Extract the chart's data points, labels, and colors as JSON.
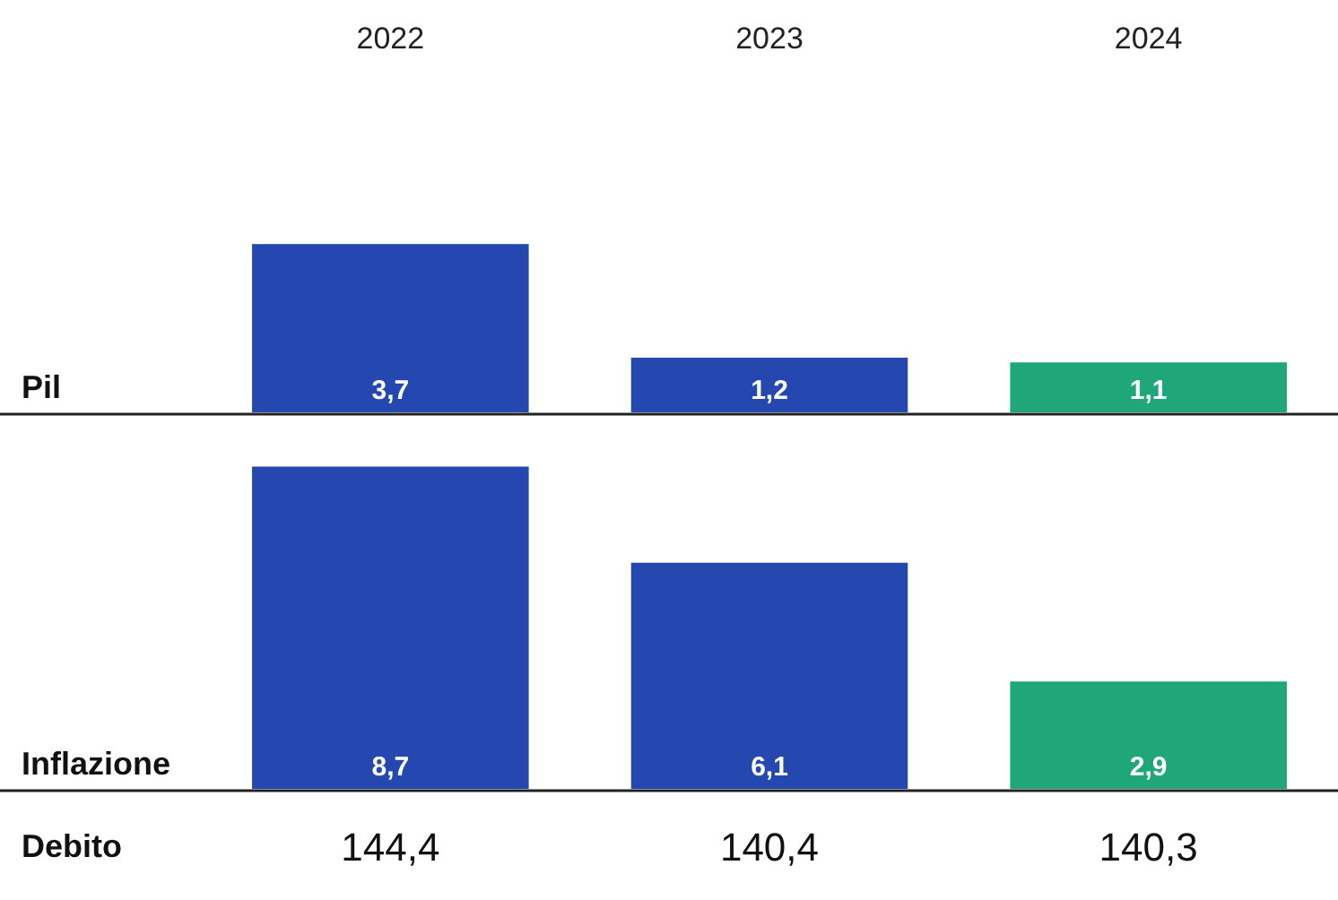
{
  "chart_data": [
    {
      "type": "bar",
      "title": "Pil",
      "categories": [
        "2022",
        "2023",
        "2024"
      ],
      "values": [
        3.7,
        1.2,
        1.1
      ],
      "colors": [
        "#2548b0",
        "#2548b0",
        "#1fa77a"
      ],
      "value_labels": [
        "3,7",
        "1,2",
        "1,1"
      ],
      "tick_labels": "x"
    },
    {
      "type": "bar",
      "title": "Inflazione",
      "categories": [
        "2022",
        "2023",
        "2024"
      ],
      "values": [
        8.7,
        6.1,
        2.9
      ],
      "colors": [
        "#2548b0",
        "#2548b0",
        "#1fa77a"
      ],
      "value_labels": [
        "8,7",
        "6,1",
        "2,9"
      ],
      "tick_labels": false
    },
    {
      "type": "other",
      "title": "Debito",
      "annotations": [
        "144,4",
        "140,4",
        "140,3"
      ]
    }
  ]
}
